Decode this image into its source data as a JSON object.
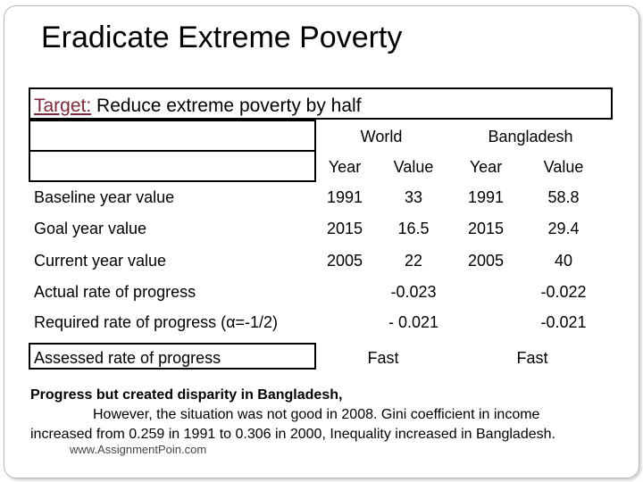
{
  "slide": {
    "title": "Eradicate Extreme Poverty",
    "target_label": "Target:",
    "target_text": " Reduce extreme poverty by half"
  },
  "table": {
    "groups": [
      "World",
      "Bangladesh"
    ],
    "subheaders": [
      "Year",
      "Value",
      "Year",
      "Value"
    ],
    "rows": [
      {
        "label": "Baseline year value",
        "cells": [
          "1991",
          "33",
          "1991",
          "58.8"
        ]
      },
      {
        "label": "Goal year value",
        "cells": [
          "2015",
          "16.5",
          "2015",
          "29.4"
        ]
      },
      {
        "label": "Current year value",
        "cells": [
          "2005",
          "22",
          "2005",
          "40"
        ]
      },
      {
        "label": "Actual rate of progress",
        "cells": [
          "-0.023",
          "-0.022"
        ]
      },
      {
        "label": "Required rate of progress (α=-1/2)",
        "cells": [
          "- 0.021",
          "-0.021"
        ]
      },
      {
        "label": "Assessed rate of progress",
        "cells": [
          "Fast",
          "Fast"
        ]
      }
    ]
  },
  "note": {
    "line1": "Progress but created disparity in Bangladesh,",
    "line2": "However, the situation was not good in 2008. Gini coefficient in income",
    "line3": "increased from 0.259 in 1991 to 0.306 in 2000, Inequality increased in Bangladesh."
  },
  "watermark": "www.AssignmentPoin.com"
}
